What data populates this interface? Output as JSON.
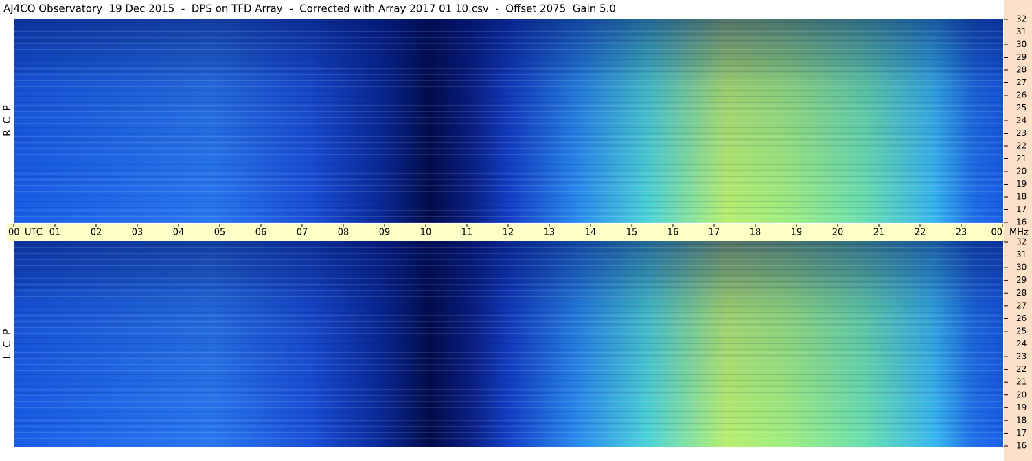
{
  "chart_data": {
    "type": "spectrogram",
    "title": "AJ4CO Observatory  19 Dec 2015  -  DPS on TFD Array  -  Corrected with Array 2017 01 10.csv  -  Offset 2075  Gain 5.0",
    "panels": [
      "R  C  P",
      "L  C  P"
    ],
    "xlabel": "UTC",
    "ylabel": "MHz",
    "xlim": [
      0,
      24
    ],
    "xticks": [
      {
        "value": 0,
        "label": "00"
      },
      {
        "value": 1,
        "label": "01"
      },
      {
        "value": 2,
        "label": "02"
      },
      {
        "value": 3,
        "label": "03"
      },
      {
        "value": 4,
        "label": "04"
      },
      {
        "value": 5,
        "label": "05"
      },
      {
        "value": 6,
        "label": "06"
      },
      {
        "value": 7,
        "label": "07"
      },
      {
        "value": 8,
        "label": "08"
      },
      {
        "value": 9,
        "label": "09"
      },
      10,
      11,
      12,
      13,
      14,
      15,
      16,
      17,
      18,
      19,
      20,
      21,
      22,
      23,
      {
        "value": 24,
        "label": "00"
      }
    ],
    "ylim": [
      16,
      32
    ],
    "yticks": [
      16,
      17,
      18,
      19,
      20,
      21,
      22,
      23,
      24,
      25,
      26,
      27,
      28,
      29,
      30,
      31,
      32
    ]
  }
}
